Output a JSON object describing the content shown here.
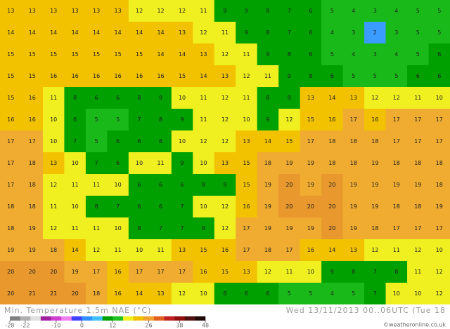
{
  "map": {
    "rows": [
      [
        13,
        13,
        13,
        13,
        13,
        13,
        12,
        12,
        12,
        11,
        9,
        9,
        8,
        7,
        6,
        5,
        4,
        3,
        4,
        5,
        5
      ],
      [
        14,
        14,
        14,
        14,
        14,
        14,
        14,
        14,
        13,
        12,
        11,
        9,
        8,
        7,
        6,
        4,
        3,
        2,
        3,
        5,
        5
      ],
      [
        15,
        15,
        15,
        15,
        15,
        15,
        15,
        14,
        14,
        13,
        12,
        11,
        9,
        8,
        6,
        5,
        4,
        3,
        4,
        5,
        6
      ],
      [
        15,
        15,
        16,
        16,
        16,
        16,
        16,
        16,
        15,
        14,
        13,
        12,
        11,
        9,
        8,
        6,
        5,
        5,
        5,
        6,
        6
      ],
      [
        15,
        16,
        11,
        8,
        6,
        6,
        8,
        9,
        10,
        11,
        12,
        11,
        8,
        9,
        13,
        14,
        13,
        12,
        12,
        11,
        10
      ],
      [
        16,
        16,
        10,
        6,
        5,
        5,
        7,
        8,
        9,
        11,
        12,
        10,
        9,
        12,
        15,
        16,
        17,
        16,
        17,
        17,
        17
      ],
      [
        17,
        17,
        10,
        7,
        5,
        6,
        6,
        8,
        10,
        12,
        12,
        13,
        14,
        15,
        17,
        18,
        18,
        18,
        17,
        17,
        17
      ],
      [
        17,
        18,
        13,
        10,
        7,
        6,
        10,
        11,
        9,
        10,
        13,
        15,
        18,
        19,
        19,
        18,
        18,
        19,
        18,
        18,
        18
      ],
      [
        17,
        18,
        12,
        11,
        11,
        10,
        6,
        6,
        6,
        8,
        9,
        15,
        19,
        20,
        19,
        20,
        19,
        19,
        19,
        19,
        18
      ],
      [
        18,
        18,
        11,
        10,
        8,
        7,
        6,
        6,
        7,
        10,
        12,
        16,
        19,
        20,
        20,
        20,
        19,
        19,
        18,
        18,
        19
      ],
      [
        18,
        19,
        12,
        11,
        11,
        10,
        8,
        7,
        7,
        9,
        12,
        17,
        19,
        19,
        19,
        20,
        19,
        18,
        17,
        17,
        17
      ],
      [
        19,
        19,
        18,
        14,
        12,
        11,
        10,
        11,
        13,
        15,
        16,
        17,
        18,
        17,
        16,
        14,
        13,
        12,
        11,
        12,
        10
      ],
      [
        20,
        20,
        20,
        19,
        17,
        16,
        17,
        17,
        17,
        16,
        15,
        13,
        12,
        11,
        10,
        9,
        8,
        7,
        8,
        11,
        12
      ],
      [
        20,
        21,
        21,
        20,
        18,
        16,
        14,
        13,
        12,
        10,
        8,
        6,
        6,
        5,
        5,
        4,
        5,
        7,
        10,
        10,
        12
      ]
    ]
  },
  "footer": {
    "title": "Min. Temperature 1.5m NAE (°C)",
    "date": "Wed 13/11/2013 00..06UTC (Tue 18",
    "credit": "©weatheronline.co.uk"
  },
  "legend": {
    "ticks": [
      -28,
      -22,
      -10,
      0,
      12,
      26,
      38,
      48
    ],
    "colors": [
      "#808080",
      "#b0b0b0",
      "#e0e0e0",
      "#a020a0",
      "#d040d0",
      "#f080f0",
      "#4040ff",
      "#3090ff",
      "#40c0ff",
      "#00a000",
      "#20c020",
      "#f0f020",
      "#f0c000",
      "#f0a030",
      "#e06020",
      "#c02020",
      "#901010",
      "#501010",
      "#200808"
    ]
  }
}
